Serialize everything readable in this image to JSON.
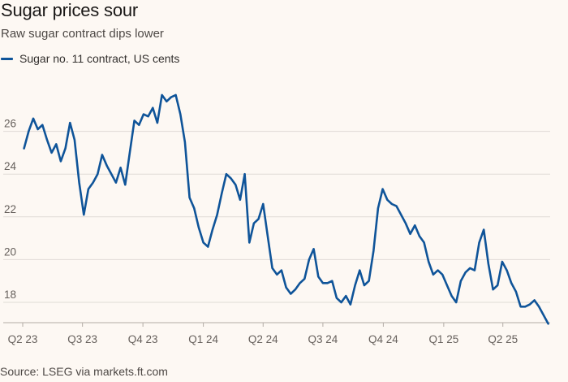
{
  "header": {
    "title": "Sugar prices sour",
    "subtitle": "Raw sugar contract dips lower"
  },
  "legend": {
    "label": "Sugar no. 11 contract, US cents",
    "color": "#0f5499"
  },
  "footer": {
    "source": "Source: LSEG via markets.ft.com"
  },
  "chart_data": {
    "type": "line",
    "title": "Sugar prices sour",
    "subtitle": "Raw sugar contract dips lower",
    "xlabel": "",
    "ylabel": "",
    "ylim": [
      17,
      28.3
    ],
    "grid": true,
    "yticks": [
      18,
      20,
      22,
      24,
      26
    ],
    "xticks": [
      "Q2 23",
      "Q3 23",
      "Q4 23",
      "Q1 24",
      "Q2 24",
      "Q3 24",
      "Q4 24",
      "Q1 25",
      "Q2 25"
    ],
    "xtick_dates": [
      "2023-04-01",
      "2023-07-01",
      "2023-10-01",
      "2024-01-01",
      "2024-04-01",
      "2024-07-01",
      "2024-10-01",
      "2025-01-01",
      "2025-04-01"
    ],
    "xlim": [
      "2023-04-01",
      "2025-06-12"
    ],
    "legend_position": "top-left",
    "series": [
      {
        "name": "Sugar no. 11 contract, US cents",
        "color": "#0f5499",
        "points": [
          [
            "2023-04-03",
            25.2
          ],
          [
            "2023-04-10",
            26.0
          ],
          [
            "2023-04-17",
            26.6
          ],
          [
            "2023-04-24",
            26.1
          ],
          [
            "2023-05-01",
            26.3
          ],
          [
            "2023-05-08",
            25.6
          ],
          [
            "2023-05-15",
            25.0
          ],
          [
            "2023-05-22",
            25.4
          ],
          [
            "2023-05-29",
            24.6
          ],
          [
            "2023-06-05",
            25.2
          ],
          [
            "2023-06-12",
            26.4
          ],
          [
            "2023-06-19",
            25.6
          ],
          [
            "2023-06-26",
            23.6
          ],
          [
            "2023-07-03",
            22.1
          ],
          [
            "2023-07-10",
            23.3
          ],
          [
            "2023-07-17",
            23.6
          ],
          [
            "2023-07-24",
            24.0
          ],
          [
            "2023-07-31",
            24.9
          ],
          [
            "2023-08-07",
            24.4
          ],
          [
            "2023-08-14",
            24.0
          ],
          [
            "2023-08-21",
            23.6
          ],
          [
            "2023-08-28",
            24.3
          ],
          [
            "2023-09-04",
            23.5
          ],
          [
            "2023-09-11",
            25.0
          ],
          [
            "2023-09-18",
            26.5
          ],
          [
            "2023-09-25",
            26.3
          ],
          [
            "2023-10-02",
            26.8
          ],
          [
            "2023-10-09",
            26.7
          ],
          [
            "2023-10-16",
            27.1
          ],
          [
            "2023-10-23",
            26.4
          ],
          [
            "2023-10-30",
            27.7
          ],
          [
            "2023-11-06",
            27.4
          ],
          [
            "2023-11-13",
            27.6
          ],
          [
            "2023-11-20",
            27.7
          ],
          [
            "2023-11-27",
            26.8
          ],
          [
            "2023-12-04",
            25.5
          ],
          [
            "2023-12-11",
            22.9
          ],
          [
            "2023-12-18",
            22.4
          ],
          [
            "2023-12-25",
            21.5
          ],
          [
            "2024-01-01",
            20.8
          ],
          [
            "2024-01-08",
            20.6
          ],
          [
            "2024-01-15",
            21.4
          ],
          [
            "2024-01-22",
            22.1
          ],
          [
            "2024-01-29",
            23.1
          ],
          [
            "2024-02-05",
            24.0
          ],
          [
            "2024-02-12",
            23.8
          ],
          [
            "2024-02-19",
            23.5
          ],
          [
            "2024-02-26",
            22.8
          ],
          [
            "2024-03-04",
            24.0
          ],
          [
            "2024-03-11",
            20.8
          ],
          [
            "2024-03-18",
            21.7
          ],
          [
            "2024-03-25",
            21.9
          ],
          [
            "2024-04-01",
            22.6
          ],
          [
            "2024-04-08",
            21.1
          ],
          [
            "2024-04-15",
            19.6
          ],
          [
            "2024-04-22",
            19.3
          ],
          [
            "2024-04-29",
            19.5
          ],
          [
            "2024-05-06",
            18.7
          ],
          [
            "2024-05-13",
            18.4
          ],
          [
            "2024-05-20",
            18.6
          ],
          [
            "2024-05-27",
            18.9
          ],
          [
            "2024-06-03",
            19.1
          ],
          [
            "2024-06-10",
            20.0
          ],
          [
            "2024-06-17",
            20.5
          ],
          [
            "2024-06-24",
            19.2
          ],
          [
            "2024-07-01",
            18.9
          ],
          [
            "2024-07-08",
            18.9
          ],
          [
            "2024-07-15",
            19.0
          ],
          [
            "2024-07-22",
            18.2
          ],
          [
            "2024-07-29",
            18.0
          ],
          [
            "2024-08-05",
            18.3
          ],
          [
            "2024-08-12",
            17.9
          ],
          [
            "2024-08-19",
            18.8
          ],
          [
            "2024-08-26",
            19.5
          ],
          [
            "2024-09-02",
            18.8
          ],
          [
            "2024-09-09",
            19.0
          ],
          [
            "2024-09-16",
            20.4
          ],
          [
            "2024-09-23",
            22.4
          ],
          [
            "2024-09-30",
            23.3
          ],
          [
            "2024-10-07",
            22.8
          ],
          [
            "2024-10-14",
            22.6
          ],
          [
            "2024-10-21",
            22.5
          ],
          [
            "2024-10-28",
            22.1
          ],
          [
            "2024-11-04",
            21.7
          ],
          [
            "2024-11-11",
            21.2
          ],
          [
            "2024-11-18",
            21.6
          ],
          [
            "2024-11-25",
            21.1
          ],
          [
            "2024-12-02",
            20.8
          ],
          [
            "2024-12-09",
            19.9
          ],
          [
            "2024-12-16",
            19.3
          ],
          [
            "2024-12-23",
            19.5
          ],
          [
            "2024-12-30",
            19.3
          ],
          [
            "2025-01-06",
            18.8
          ],
          [
            "2025-01-13",
            18.3
          ],
          [
            "2025-01-20",
            18.0
          ],
          [
            "2025-01-27",
            19.0
          ],
          [
            "2025-02-03",
            19.4
          ],
          [
            "2025-02-10",
            19.6
          ],
          [
            "2025-02-17",
            19.5
          ],
          [
            "2025-02-24",
            20.8
          ],
          [
            "2025-03-03",
            21.4
          ],
          [
            "2025-03-10",
            19.8
          ],
          [
            "2025-03-17",
            18.6
          ],
          [
            "2025-03-24",
            18.8
          ],
          [
            "2025-03-31",
            19.9
          ],
          [
            "2025-04-07",
            19.5
          ],
          [
            "2025-04-14",
            18.9
          ],
          [
            "2025-04-21",
            18.5
          ],
          [
            "2025-04-28",
            17.8
          ],
          [
            "2025-05-05",
            17.8
          ],
          [
            "2025-05-12",
            17.9
          ],
          [
            "2025-05-19",
            18.1
          ],
          [
            "2025-05-26",
            17.8
          ],
          [
            "2025-06-02",
            17.4
          ],
          [
            "2025-06-09",
            17.0
          ]
        ]
      }
    ]
  }
}
